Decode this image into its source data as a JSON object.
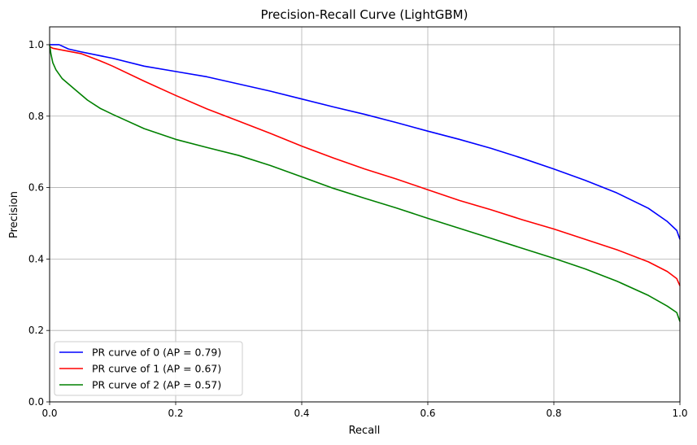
{
  "chart_data": {
    "type": "line",
    "title": "Precision-Recall Curve (LightGBM)",
    "xlabel": "Recall",
    "ylabel": "Precision",
    "xlim": [
      0.0,
      1.0
    ],
    "ylim": [
      0.0,
      1.05
    ],
    "xticks": [
      0.0,
      0.2,
      0.4,
      0.6,
      0.8,
      1.0
    ],
    "xtick_labels": [
      "0.0",
      "0.2",
      "0.4",
      "0.6",
      "0.8",
      "1.0"
    ],
    "yticks": [
      0.0,
      0.2,
      0.4,
      0.6,
      0.8,
      1.0
    ],
    "ytick_labels": [
      "0.0",
      "0.2",
      "0.4",
      "0.6",
      "0.8",
      "1.0"
    ],
    "grid": true,
    "legend_position": "lower-left",
    "series": [
      {
        "name": "PR curve of 0 (AP = 0.79)",
        "color": "#0000ff",
        "x": [
          0.0,
          0.005,
          0.015,
          0.03,
          0.05,
          0.1,
          0.15,
          0.2,
          0.25,
          0.3,
          0.35,
          0.4,
          0.45,
          0.5,
          0.55,
          0.6,
          0.65,
          0.7,
          0.75,
          0.8,
          0.85,
          0.9,
          0.95,
          0.98,
          0.995,
          1.0
        ],
        "y": [
          1.0,
          1.0,
          1.0,
          0.988,
          0.98,
          0.962,
          0.94,
          0.925,
          0.91,
          0.89,
          0.87,
          0.848,
          0.826,
          0.805,
          0.782,
          0.758,
          0.735,
          0.71,
          0.682,
          0.652,
          0.62,
          0.585,
          0.542,
          0.505,
          0.48,
          0.455
        ]
      },
      {
        "name": "PR curve of 1 (AP = 0.67)",
        "color": "#ff0000",
        "x": [
          0.0,
          0.005,
          0.02,
          0.05,
          0.08,
          0.1,
          0.15,
          0.2,
          0.25,
          0.3,
          0.35,
          0.4,
          0.45,
          0.5,
          0.55,
          0.6,
          0.65,
          0.7,
          0.75,
          0.8,
          0.85,
          0.9,
          0.95,
          0.98,
          0.995,
          1.0
        ],
        "y": [
          0.995,
          0.99,
          0.985,
          0.975,
          0.955,
          0.94,
          0.898,
          0.858,
          0.82,
          0.786,
          0.752,
          0.716,
          0.683,
          0.652,
          0.624,
          0.594,
          0.564,
          0.538,
          0.51,
          0.484,
          0.455,
          0.426,
          0.392,
          0.365,
          0.345,
          0.325
        ]
      },
      {
        "name": "PR curve of 2 (AP = 0.57)",
        "color": "#008000",
        "x": [
          0.0,
          0.002,
          0.005,
          0.01,
          0.02,
          0.04,
          0.06,
          0.08,
          0.1,
          0.15,
          0.2,
          0.25,
          0.3,
          0.35,
          0.4,
          0.45,
          0.5,
          0.55,
          0.6,
          0.65,
          0.7,
          0.75,
          0.8,
          0.85,
          0.9,
          0.95,
          0.98,
          0.995,
          1.0
        ],
        "y": [
          1.0,
          0.975,
          0.95,
          0.93,
          0.905,
          0.875,
          0.845,
          0.822,
          0.805,
          0.765,
          0.735,
          0.712,
          0.69,
          0.662,
          0.63,
          0.598,
          0.57,
          0.543,
          0.514,
          0.486,
          0.458,
          0.43,
          0.402,
          0.372,
          0.338,
          0.298,
          0.268,
          0.25,
          0.225
        ]
      }
    ]
  }
}
